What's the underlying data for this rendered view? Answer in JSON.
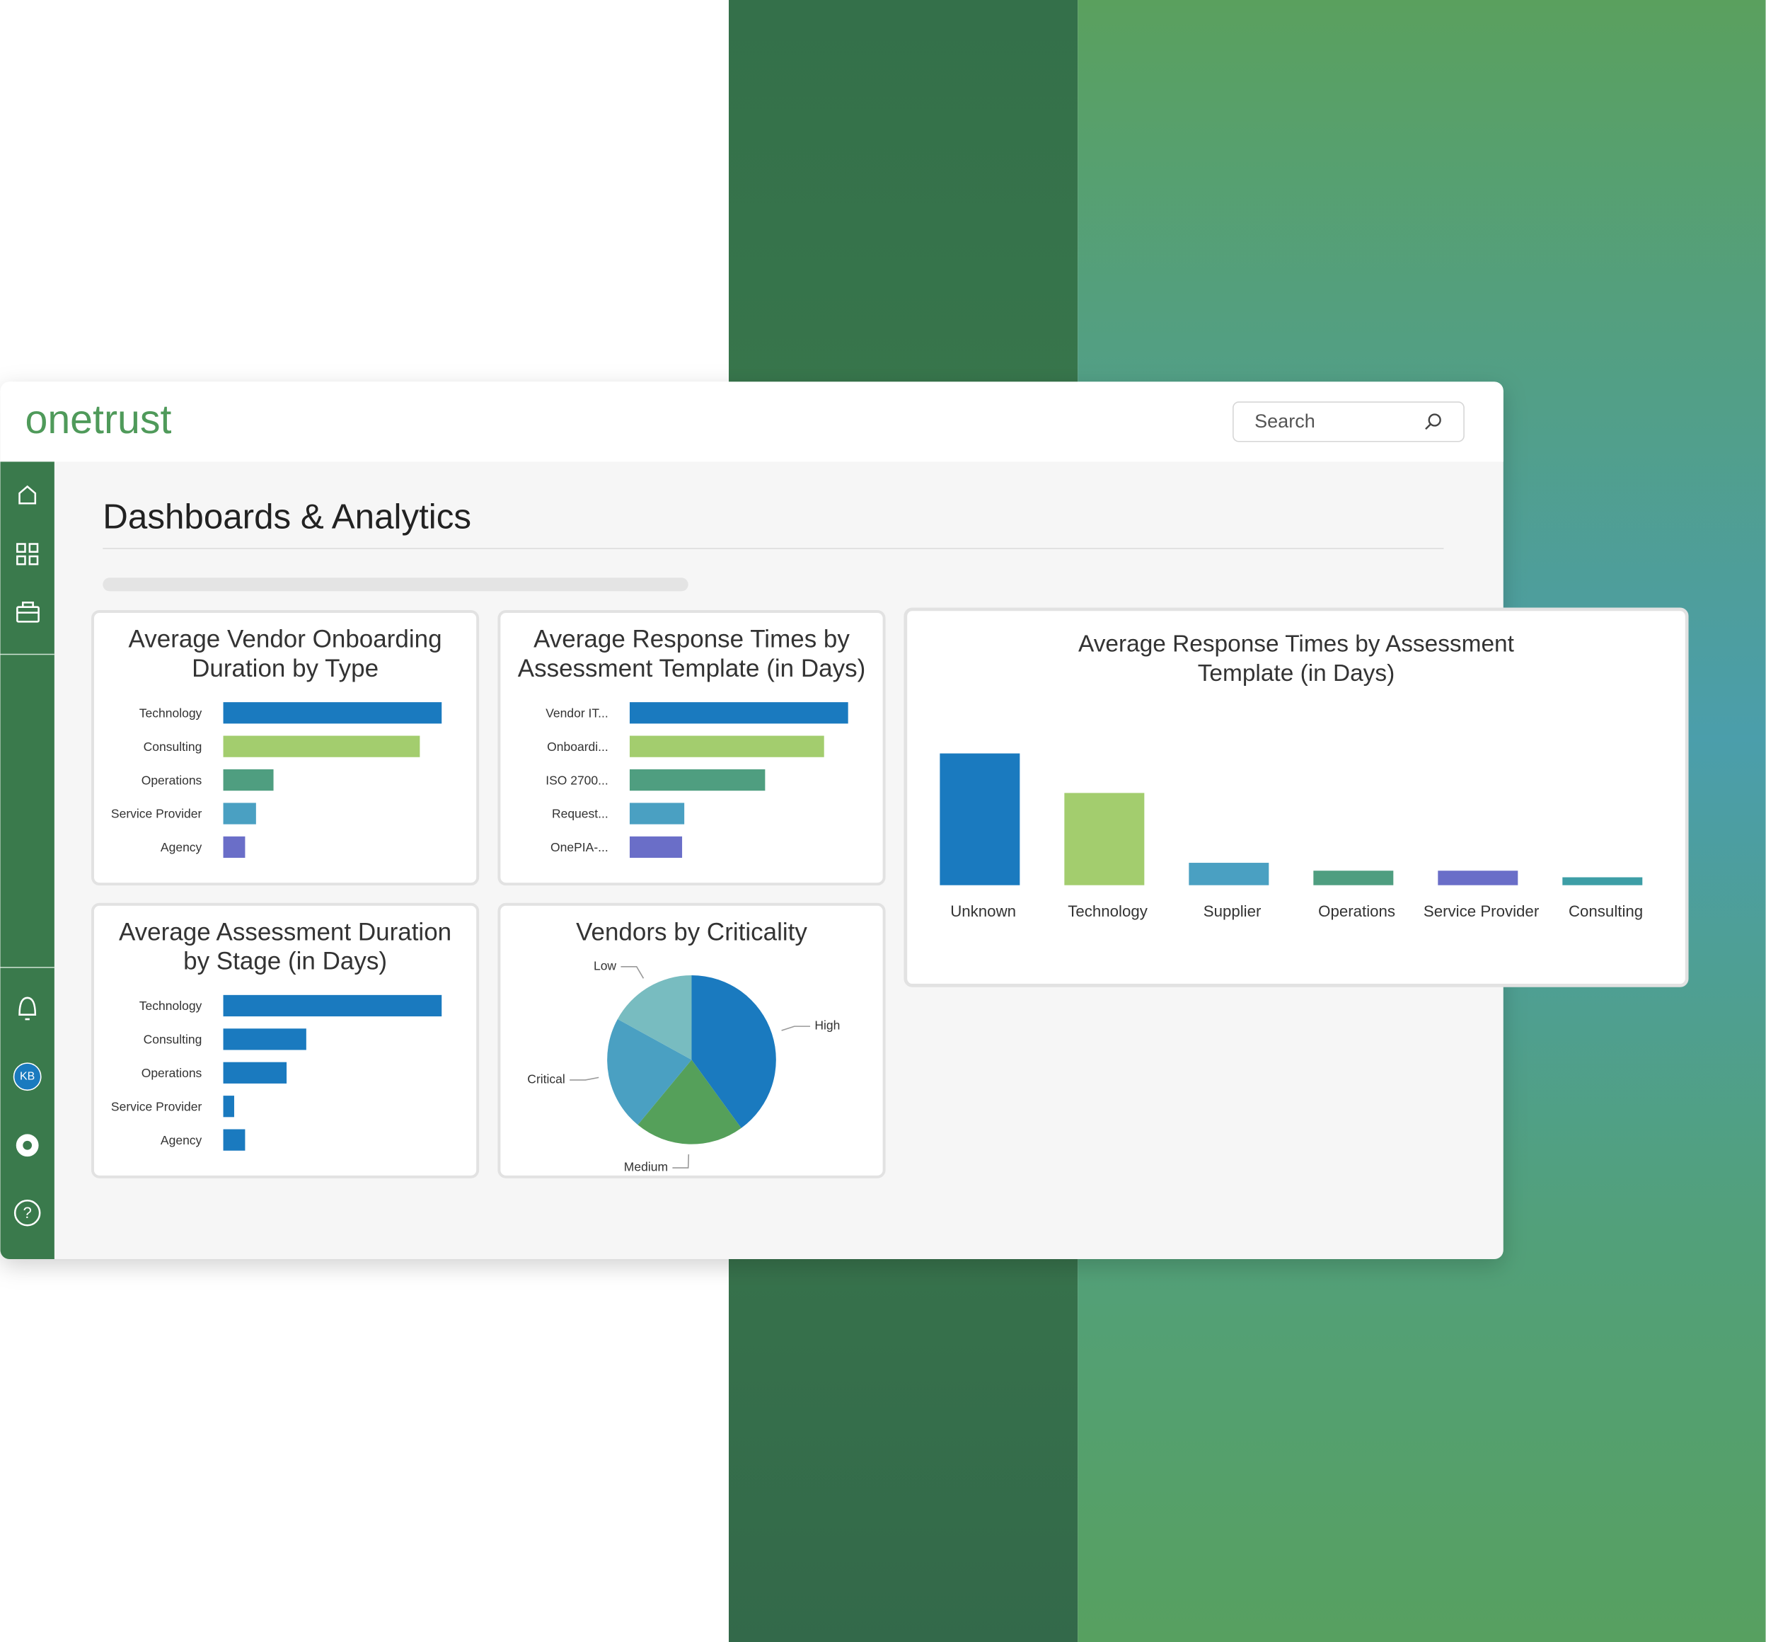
{
  "logo": "onetrust",
  "search_placeholder": "Search",
  "page_title": "Dashboards & Analytics",
  "avatar": "KB",
  "chart_data": [
    {
      "type": "hbar",
      "title": [
        "Average Vendor Onboarding",
        "Duration by Type"
      ],
      "categories": [
        "Technology",
        "Consulting",
        "Operations",
        "Service Provider",
        "Agency"
      ],
      "values": [
        100,
        90,
        23,
        15,
        10
      ],
      "colors": [
        "#1a7abf",
        "#a3cd6e",
        "#4f9e80",
        "#4aa0c2",
        "#6a6ec8"
      ]
    },
    {
      "type": "hbar",
      "title": [
        "Average Response Times by",
        "Assessment Template (in Days)"
      ],
      "categories": [
        "Vendor IT...",
        "Onboardi...",
        "ISO 2700...",
        "Request...",
        "OnePIA-..."
      ],
      "values": [
        100,
        89,
        62,
        25,
        24
      ],
      "colors": [
        "#1a7abf",
        "#a3cd6e",
        "#4f9e80",
        "#4aa0c2",
        "#6a6ec8"
      ]
    },
    {
      "type": "hbar",
      "title": [
        "Average Assessment Duration",
        "by Stage (in Days)"
      ],
      "categories": [
        "Technology",
        "Consulting",
        "Operations",
        "Service Provider",
        "Agency"
      ],
      "values": [
        100,
        38,
        29,
        5,
        10
      ],
      "color": "#1a7abf"
    },
    {
      "type": "pie",
      "title": [
        "Vendors by Criticality"
      ],
      "categories": [
        "High",
        "Medium",
        "Critical",
        "Low"
      ],
      "values": [
        40,
        21,
        22,
        17
      ],
      "colors": [
        "#1a7abf",
        "#55a05a",
        "#4aa0c2",
        "#78bcc0"
      ]
    },
    {
      "type": "bar",
      "title": [
        "Average Response Times by Assessment",
        "Template (in Days)"
      ],
      "categories": [
        "Unknown",
        "Technology",
        "Supplier",
        "Operations",
        "Service Provider",
        "Consulting"
      ],
      "values": [
        100,
        70,
        17,
        11,
        11,
        6
      ],
      "colors": [
        "#1a7abf",
        "#a3cd6e",
        "#4aa0c2",
        "#4f9e80",
        "#6a6ec8",
        "#3d9ea6"
      ]
    }
  ]
}
